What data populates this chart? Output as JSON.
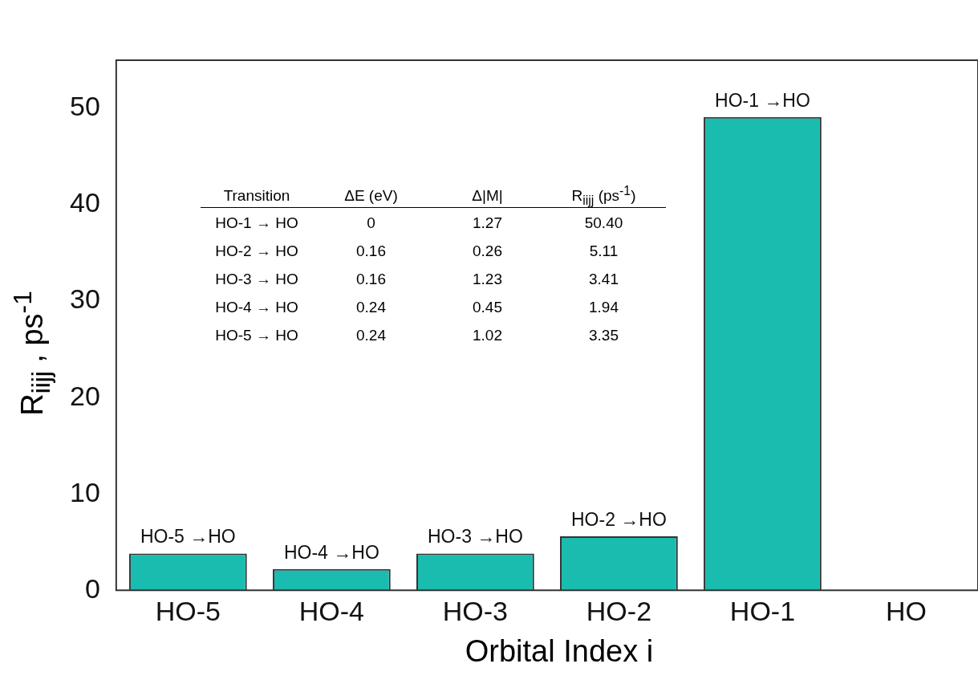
{
  "chart_data": {
    "type": "bar",
    "xlabel": "Orbital Index i",
    "ylabel": "R$_{iijj}$ , ps$^{-1}$",
    "categories": [
      "HO-5",
      "HO-4",
      "HO-3",
      "HO-2",
      "HO-1",
      "HO"
    ],
    "values": [
      3.8,
      2.2,
      3.8,
      5.6,
      49.1,
      0
    ],
    "value_labels": [
      "HO-5 →HO",
      "HO-4 →HO",
      "HO-3 →HO",
      "HO-2 →HO",
      "HO-1 →HO",
      null
    ],
    "color": "#1abcb0",
    "ylim": [
      0,
      55
    ],
    "yticks": [
      0,
      10,
      20,
      30,
      40,
      50
    ],
    "grid": false,
    "legend": false,
    "annotations": [
      "Transition",
      "ΔE (eV)",
      "Δ|M|",
      "R$_{iijj}$ (ps$^{-1}$)",
      "HO-1 →  HO",
      "0",
      "1.27",
      "50.40",
      "HO-2 → HO",
      "0.16",
      "0.26",
      "5.11",
      "HO-3 → HO",
      "0.16",
      "1.23",
      "3.41",
      "HO-4 → HO",
      "0.24",
      "0.45",
      "1.94",
      "HO-5 → HO",
      "0.24",
      "1.02",
      "3.35"
    ]
  }
}
